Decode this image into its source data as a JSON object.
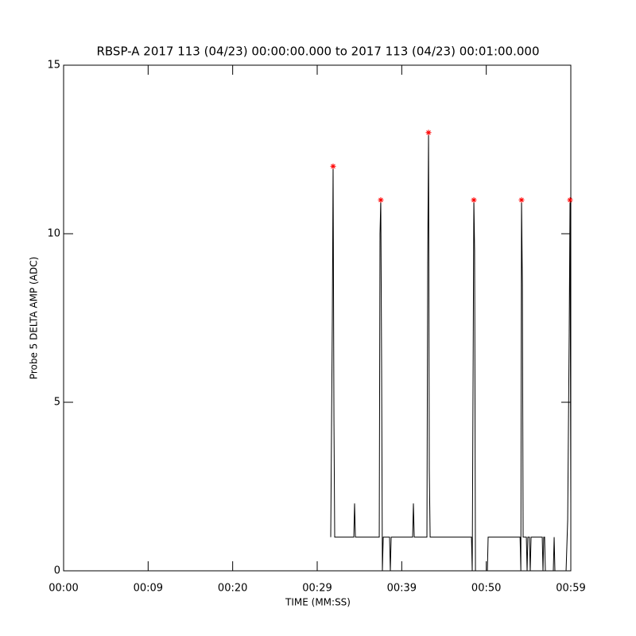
{
  "chart_data": {
    "type": "line",
    "title": "RBSP-A 2017 113 (04/23) 00:00:00.000 to 2017 113 (04/23) 00:01:00.000",
    "xlabel": "TIME (MM:SS)",
    "ylabel": "Probe 5 DELTA AMP (ADC)",
    "xlim": [
      0,
      60
    ],
    "ylim": [
      0,
      15
    ],
    "xticks": [
      {
        "value": 0,
        "label": "00:00"
      },
      {
        "value": 10,
        "label": "00:09"
      },
      {
        "value": 20,
        "label": "00:20"
      },
      {
        "value": 30,
        "label": "00:29"
      },
      {
        "value": 40,
        "label": "00:39"
      },
      {
        "value": 50,
        "label": "00:50"
      },
      {
        "value": 60,
        "label": "00:59"
      }
    ],
    "yticks": [
      0,
      5,
      10,
      15
    ],
    "series": [
      {
        "color": "#000000",
        "x": [
          31.6,
          31.79,
          31.88,
          31.98,
          32.07,
          34.33,
          34.42,
          34.52,
          37.34,
          37.43,
          37.52,
          37.62,
          37.71,
          37.81,
          38.56,
          38.65,
          38.75,
          41.29,
          41.38,
          41.48,
          42.98,
          43.07,
          43.17,
          43.26,
          43.36,
          48.25,
          48.34,
          48.53,
          48.62,
          48.72,
          50.13,
          50.22,
          54.0,
          54.09,
          54.17,
          54.27,
          54.36,
          54.74,
          54.83,
          54.92,
          55.11,
          55.2,
          55.3,
          56.62,
          56.71,
          56.8,
          56.9,
          56.99,
          57.93,
          58.03,
          58.12,
          59.44,
          59.63,
          59.81,
          59.91,
          60.0
        ],
        "values": [
          1,
          7.5,
          12,
          4.5,
          1,
          1,
          2,
          1,
          1,
          10,
          11,
          6,
          0,
          1,
          1,
          0,
          1,
          1,
          2,
          1,
          1,
          9,
          13,
          3,
          1,
          1,
          0,
          11,
          9.5,
          0,
          0,
          1,
          1,
          0,
          11,
          8.5,
          1,
          1,
          0,
          1,
          1,
          0,
          1,
          1,
          0,
          1,
          1,
          0,
          0,
          1,
          0,
          0,
          1.5,
          7,
          11,
          2
        ]
      },
      {
        "color": "#ff0000",
        "marker": "asterisk",
        "x": [
          31.88,
          37.52,
          43.17,
          48.53,
          54.17,
          59.91
        ],
        "values": [
          12,
          11,
          13,
          11,
          11,
          11
        ]
      }
    ]
  }
}
